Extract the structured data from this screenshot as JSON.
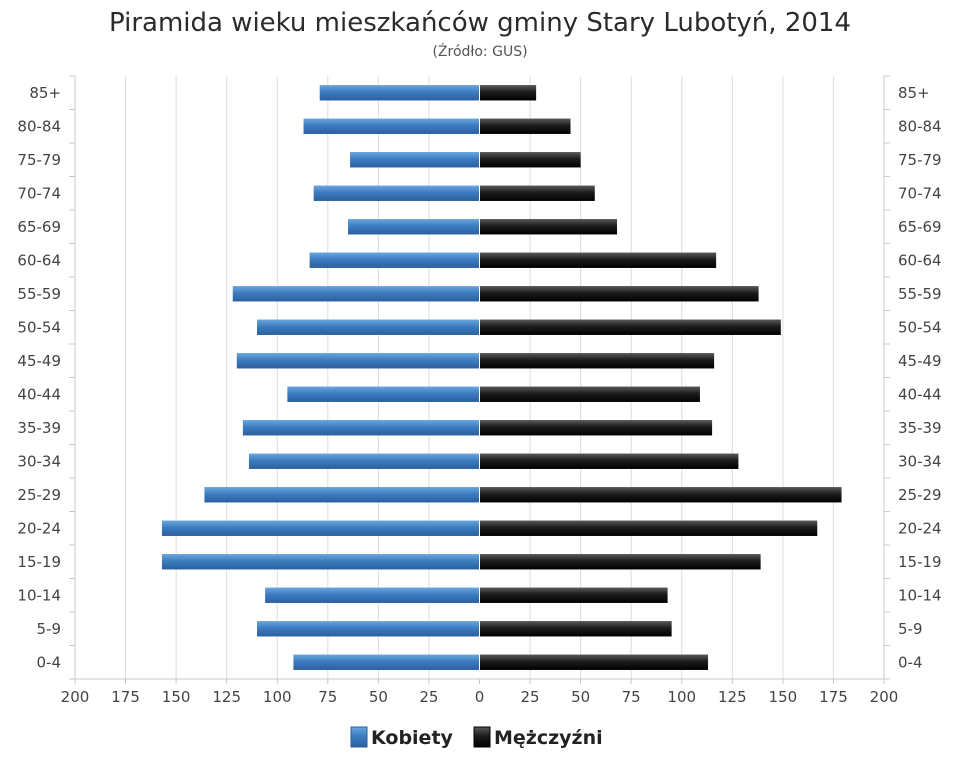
{
  "chart_data": {
    "type": "bar",
    "orientation": "horizontal-population-pyramid",
    "title": "Piramida wieku mieszkańców gminy Stary Lubotyń, 2014",
    "subtitle": "(Źródło: GUS)",
    "categories": [
      "0-4",
      "5-9",
      "10-14",
      "15-19",
      "20-24",
      "25-29",
      "30-34",
      "35-39",
      "40-44",
      "45-49",
      "50-54",
      "55-59",
      "60-64",
      "65-69",
      "70-74",
      "75-79",
      "80-84",
      "85+"
    ],
    "series": [
      {
        "name": "Kobiety",
        "side": "left",
        "color": "#3d7cc0",
        "values": [
          92,
          110,
          106,
          157,
          157,
          136,
          114,
          117,
          95,
          120,
          110,
          122,
          84,
          65,
          82,
          64,
          87,
          79
        ]
      },
      {
        "name": "Mężczyźni",
        "side": "right",
        "color": "#1c1c1c",
        "values": [
          113,
          95,
          93,
          139,
          167,
          179,
          128,
          115,
          109,
          116,
          149,
          138,
          117,
          68,
          57,
          50,
          45,
          28
        ]
      }
    ],
    "xlim": [
      -200,
      200
    ],
    "xticks": [
      -200,
      -175,
      -150,
      -125,
      -100,
      -75,
      -50,
      -25,
      0,
      25,
      50,
      75,
      100,
      125,
      150,
      175,
      200
    ],
    "xtick_labels": [
      "200",
      "175",
      "150",
      "125",
      "100",
      "75",
      "50",
      "25",
      "0",
      "25",
      "50",
      "75",
      "100",
      "125",
      "150",
      "175",
      "200"
    ],
    "grid": true,
    "legend": "bottom"
  }
}
